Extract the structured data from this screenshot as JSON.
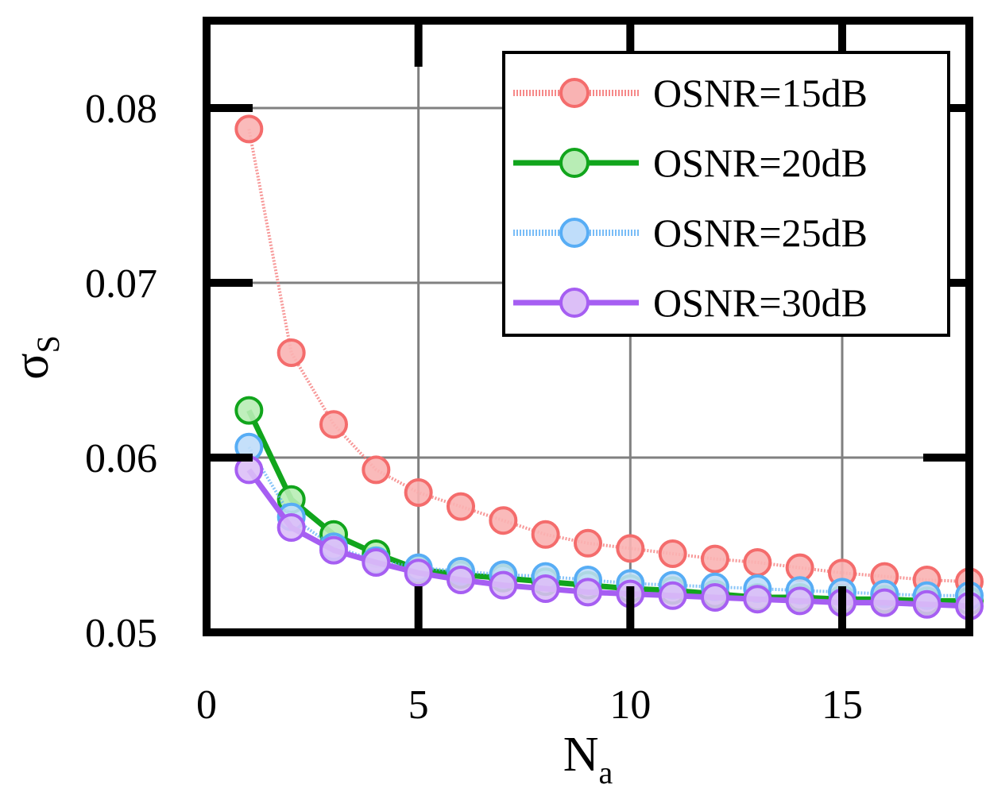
{
  "chart_data": {
    "type": "line",
    "title": "",
    "xlabel": "N",
    "xlabel_sub": "a",
    "ylabel": "σ",
    "ylabel_sub": "S",
    "xlim": [
      0,
      18
    ],
    "ylim": [
      0.05,
      0.085
    ],
    "xticks": [
      0,
      5,
      10,
      15
    ],
    "xtick_labels": [
      "0",
      "5",
      "10",
      "15"
    ],
    "yticks": [
      0.05,
      0.06,
      0.07,
      0.08
    ],
    "ytick_labels": [
      "0.05",
      "0.06",
      "0.07",
      "0.08"
    ],
    "grid": true,
    "legend_position": "top-right",
    "x": [
      1,
      2,
      3,
      4,
      5,
      6,
      7,
      8,
      9,
      10,
      11,
      12,
      13,
      14,
      15,
      16,
      17,
      18
    ],
    "series": [
      {
        "name": "OSNR=15dB",
        "color": "#f46c6c",
        "line_style": "dotted",
        "marker_fill": "#f9b3b3",
        "values": [
          0.0788,
          0.066,
          0.0619,
          0.0593,
          0.058,
          0.0572,
          0.0564,
          0.0556,
          0.0551,
          0.0548,
          0.0545,
          0.0542,
          0.054,
          0.0537,
          0.0534,
          0.0532,
          0.053,
          0.0529
        ]
      },
      {
        "name": "OSNR=20dB",
        "color": "#11a51c",
        "line_style": "solid",
        "marker_fill": "#b8edb5",
        "values": [
          0.0627,
          0.0576,
          0.0556,
          0.0545,
          0.0536,
          0.0533,
          0.0531,
          0.0529,
          0.0527,
          0.0525,
          0.0524,
          0.0522,
          0.052,
          0.052,
          0.0519,
          0.0519,
          0.0518,
          0.0518
        ]
      },
      {
        "name": "OSNR=25dB",
        "color": "#57adf5",
        "line_style": "dotted",
        "marker_fill": "#bfddfa",
        "values": [
          0.0606,
          0.0566,
          0.0549,
          0.0541,
          0.0537,
          0.0535,
          0.0533,
          0.0532,
          0.053,
          0.0528,
          0.0527,
          0.0526,
          0.0525,
          0.0524,
          0.0523,
          0.0522,
          0.0521,
          0.0521
        ]
      },
      {
        "name": "OSNR=30dB",
        "color": "#a65ef2",
        "line_style": "solid",
        "marker_fill": "#dcbff7",
        "values": [
          0.0593,
          0.056,
          0.0547,
          0.054,
          0.0534,
          0.053,
          0.0527,
          0.0525,
          0.0523,
          0.0522,
          0.0521,
          0.052,
          0.0519,
          0.0518,
          0.0517,
          0.0517,
          0.0516,
          0.0515
        ]
      }
    ]
  }
}
